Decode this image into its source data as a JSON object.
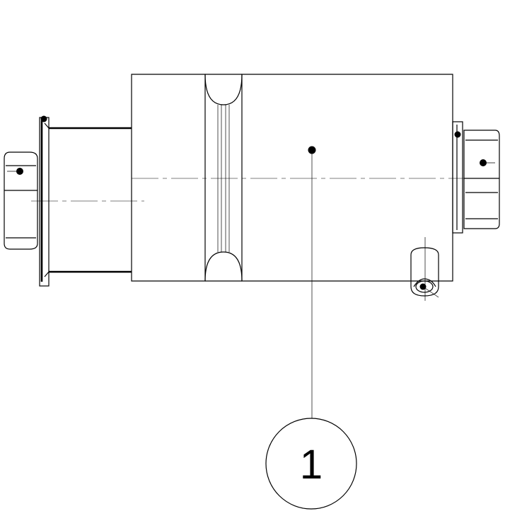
{
  "balloon": {
    "item_number": "1"
  },
  "colors": {
    "line": "#000000",
    "background": "#ffffff"
  }
}
